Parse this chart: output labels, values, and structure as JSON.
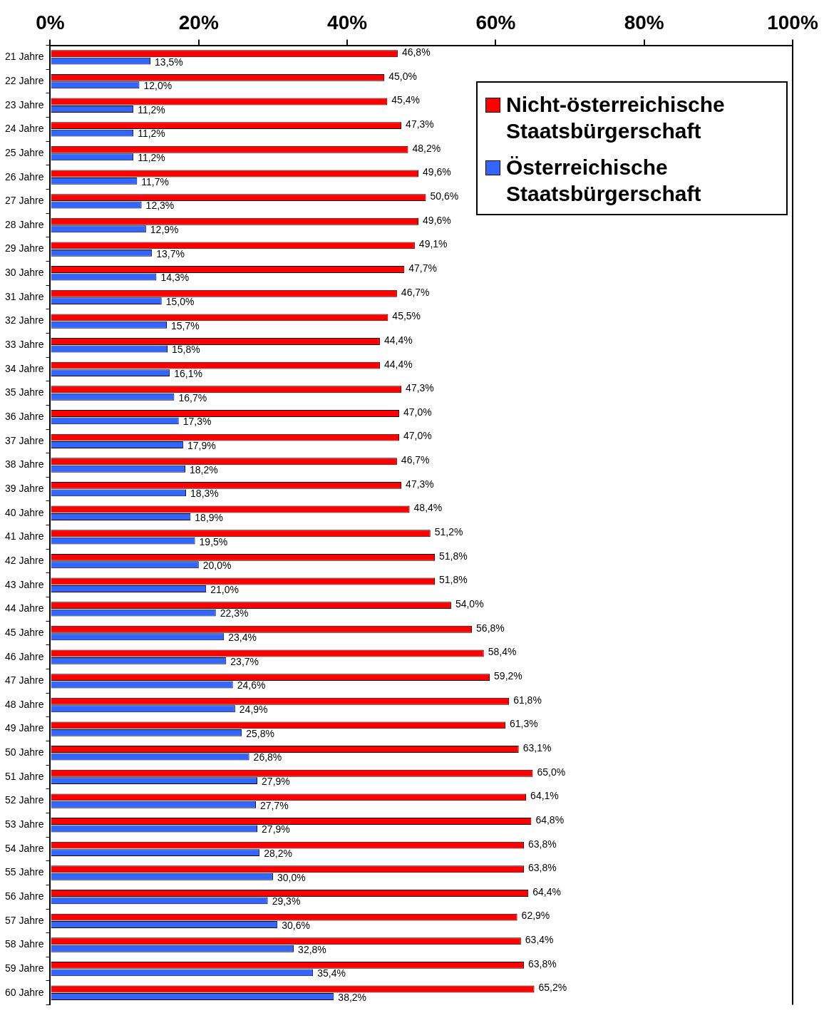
{
  "chart_data": {
    "type": "bar",
    "orientation": "horizontal",
    "grid": false,
    "legend": "top right",
    "categories": [
      "21 Jahre",
      "22 Jahre",
      "23 Jahre",
      "24 Jahre",
      "25 Jahre",
      "26 Jahre",
      "27 Jahre",
      "28 Jahre",
      "29 Jahre",
      "30 Jahre",
      "31 Jahre",
      "32 Jahre",
      "33 Jahre",
      "34 Jahre",
      "35 Jahre",
      "36 Jahre",
      "37 Jahre",
      "38 Jahre",
      "39 Jahre",
      "40 Jahre",
      "41 Jahre",
      "42 Jahre",
      "43 Jahre",
      "44 Jahre",
      "45 Jahre",
      "46 Jahre",
      "47 Jahre",
      "48 Jahre",
      "49 Jahre",
      "50 Jahre",
      "51 Jahre",
      "52 Jahre",
      "53 Jahre",
      "54 Jahre",
      "55 Jahre",
      "56 Jahre",
      "57 Jahre",
      "58 Jahre",
      "59 Jahre",
      "60 Jahre"
    ],
    "xlim": [
      0,
      100
    ],
    "xticks": [
      {
        "value": 0,
        "label": "0%"
      },
      {
        "value": 20,
        "label": "20%"
      },
      {
        "value": 40,
        "label": "40%"
      },
      {
        "value": 60,
        "label": "60%"
      },
      {
        "value": 80,
        "label": "80%"
      },
      {
        "value": 100,
        "label": "100%"
      }
    ],
    "series": [
      {
        "name": "Nicht-österreichische Staatsbürgerschaft",
        "color": "#ff0000",
        "values": [
          46.8,
          45.0,
          45.4,
          47.3,
          48.2,
          49.6,
          50.6,
          49.6,
          49.1,
          47.7,
          46.7,
          45.5,
          44.4,
          44.4,
          47.3,
          47.0,
          47.0,
          46.7,
          47.3,
          48.4,
          51.2,
          51.8,
          51.8,
          54.0,
          56.8,
          58.4,
          59.2,
          61.8,
          61.3,
          63.1,
          65.0,
          64.1,
          64.8,
          63.8,
          63.8,
          64.4,
          62.9,
          63.4,
          63.8,
          65.2
        ],
        "value_labels": [
          "46,8%",
          "45,0%",
          "45,4%",
          "47,3%",
          "48,2%",
          "49,6%",
          "50,6%",
          "49,6%",
          "49,1%",
          "47,7%",
          "46,7%",
          "45,5%",
          "44,4%",
          "44,4%",
          "47,3%",
          "47,0%",
          "47,0%",
          "46,7%",
          "47,3%",
          "48,4%",
          "51,2%",
          "51,8%",
          "51,8%",
          "54,0%",
          "56,8%",
          "58,4%",
          "59,2%",
          "61,8%",
          "61,3%",
          "63,1%",
          "65,0%",
          "64,1%",
          "64,8%",
          "63,8%",
          "63,8%",
          "64,4%",
          "62,9%",
          "63,4%",
          "63,8%",
          "65,2%"
        ]
      },
      {
        "name": "Österreichische Staatsbürgerschaft",
        "color": "#3366ff",
        "values": [
          13.5,
          12.0,
          11.2,
          11.2,
          11.2,
          11.7,
          12.3,
          12.9,
          13.7,
          14.3,
          15.0,
          15.7,
          15.8,
          16.1,
          16.7,
          17.3,
          17.9,
          18.2,
          18.3,
          18.9,
          19.5,
          20.0,
          21.0,
          22.3,
          23.4,
          23.7,
          24.6,
          24.9,
          25.8,
          26.8,
          27.9,
          27.7,
          27.9,
          28.2,
          30.0,
          29.3,
          30.6,
          32.8,
          35.4,
          38.2
        ],
        "value_labels": [
          "13,5%",
          "12,0%",
          "11,2%",
          "11,2%",
          "11,2%",
          "11,7%",
          "12,3%",
          "12,9%",
          "13,7%",
          "14,3%",
          "15,0%",
          "15,7%",
          "15,8%",
          "16,1%",
          "16,7%",
          "17,3%",
          "17,9%",
          "18,2%",
          "18,3%",
          "18,9%",
          "19,5%",
          "20,0%",
          "21,0%",
          "22,3%",
          "23,4%",
          "23,7%",
          "24,6%",
          "24,9%",
          "25,8%",
          "26,8%",
          "27,9%",
          "27,7%",
          "27,9%",
          "28,2%",
          "30,0%",
          "29,3%",
          "30,6%",
          "32,8%",
          "35,4%",
          "38,2%"
        ]
      }
    ]
  }
}
